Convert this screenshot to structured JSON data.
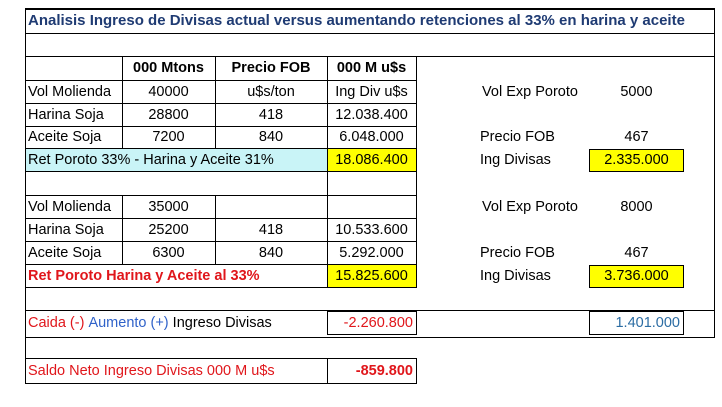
{
  "title": "Analisis Ingreso de Divisas actual versus aumentando retenciones al 33% en harina y aceite",
  "headers": {
    "mtons": "000 Mtons",
    "precio_fob": "Precio FOB",
    "musd": "000 M u$s"
  },
  "s1": {
    "rows": [
      {
        "label": "Vol Molienda",
        "mtons": "40000",
        "precio": "u$s/ton",
        "value": "Ing Div u$s"
      },
      {
        "label": "Harina Soja",
        "mtons": "28800",
        "precio": "418",
        "value": "12.038.400"
      },
      {
        "label": "Aceite Soja",
        "mtons": "7200",
        "precio": "840",
        "value": "6.048.000"
      }
    ],
    "total_label": "Ret Poroto 33% - Harina y Aceite 31%",
    "total_value": "18.086.400",
    "side": {
      "vol_label": "Vol Exp Poroto",
      "vol_value": "5000",
      "precio_label": "Precio FOB",
      "precio_value": "467",
      "ing_label": "Ing Divisas",
      "ing_value": "2.335.000"
    }
  },
  "s2": {
    "rows": [
      {
        "label": "Vol Molienda",
        "mtons": "35000",
        "precio": "",
        "value": ""
      },
      {
        "label": "Harina Soja",
        "mtons": "25200",
        "precio": "418",
        "value": "10.533.600"
      },
      {
        "label": "Aceite Soja",
        "mtons": "6300",
        "precio": "840",
        "value": "5.292.000"
      }
    ],
    "total_label": "Ret Poroto Harina y Aceite al 33%",
    "total_value": "15.825.600",
    "side": {
      "vol_label": "Vol Exp Poroto",
      "vol_value": "8000",
      "precio_label": "Precio FOB",
      "precio_value": "467",
      "ing_label": "Ing Divisas",
      "ing_value": "3.736.000"
    }
  },
  "diff": {
    "caida": "Caida (-)",
    "aumento": "Aumento (+)",
    "ingreso": "Ingreso Divisas",
    "value": "-2.260.800",
    "side_value": "1.401.000"
  },
  "saldo": {
    "label": "Saldo Neto  Ingreso Divisas 000 M u$s",
    "value": "-859.800"
  },
  "colors": {
    "title_blue": "#1f3b73",
    "cyan_fill": "#c9f4f7",
    "yellow_fill": "#ffff00",
    "red": "#e0161b",
    "blue": "#2f62c9",
    "steel_blue": "#2b6ca3"
  }
}
